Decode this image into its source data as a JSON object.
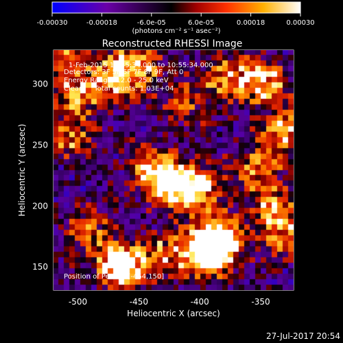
{
  "colorbar": {
    "tick_labels": [
      "-0.00030",
      "-0.00018",
      "-6.0e-05",
      "6.0e-05",
      "0.00018",
      "0.00030"
    ],
    "tick_values": [
      -0.0003,
      -0.00018,
      -6e-05,
      6e-05,
      0.00018,
      0.0003
    ],
    "range": [
      -0.0003,
      0.0003
    ],
    "units_label": "(photons cm⁻² s⁻¹ asec⁻²)",
    "colormap": [
      "#0000ff",
      "#6a00a8",
      "#000000",
      "#a00000",
      "#ff4000",
      "#ffc000",
      "#ffffff"
    ]
  },
  "chart_data": {
    "type": "heatmap",
    "title": "Reconstructed RHESSI Image",
    "xlabel": "Heliocentric X (arcsec)",
    "ylabel": "Heliocentric Y (arcsec)",
    "xlim": [
      -520,
      -323
    ],
    "ylim": [
      131,
      328
    ],
    "xticks": [
      -500,
      -450,
      -400,
      -350
    ],
    "yticks": [
      150,
      200,
      250,
      300
    ],
    "annotations": {
      "time": "1-Feb-2015 10:45:34.000 to 10:55:34.000",
      "detectors": "Detectors: 3F 5F 6F 7F 8F 9F, Att 0",
      "energy": "Energy Range: 12.0 - 25.0 keV",
      "clean": "Clean     Total counts: 1.03E+04",
      "peak": "Position of Peak = [-464,150]"
    },
    "peak_position": [
      -464,
      150
    ],
    "grid": false
  },
  "footer": {
    "timestamp": "27-Jul-2017 20:54"
  }
}
